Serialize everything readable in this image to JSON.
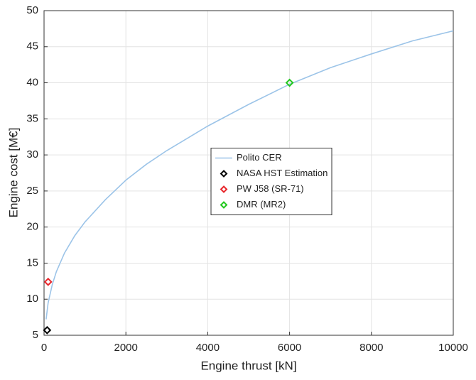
{
  "chart_data": {
    "type": "line",
    "xlabel": "Engine thrust [kN]",
    "ylabel": "Engine cost [M€]",
    "xlim": [
      0,
      10000
    ],
    "xticks": [
      0,
      2000,
      4000,
      6000,
      8000,
      10000
    ],
    "ylim": [
      5,
      50
    ],
    "yticks": [
      5,
      10,
      15,
      20,
      25,
      30,
      35,
      40,
      45,
      50
    ],
    "grid": true,
    "legend": "center",
    "series": [
      {
        "name": "Polito CER",
        "color": "#9cc4e8",
        "style": "line",
        "x": [
          50,
          100,
          200,
          300,
          500,
          750,
          1000,
          1500,
          2000,
          2500,
          3000,
          4000,
          5000,
          6000,
          7000,
          8000,
          9000,
          10000
        ],
        "values": [
          7.2,
          9.5,
          12.0,
          13.8,
          16.4,
          18.8,
          20.7,
          23.8,
          26.5,
          28.7,
          30.6,
          34.0,
          37.0,
          39.8,
          42.1,
          44.0,
          45.8,
          47.2
        ]
      },
      {
        "name": "NASA HST Estimation",
        "color": "#000000",
        "style": "marker",
        "x": [
          75
        ],
        "values": [
          5.7
        ]
      },
      {
        "name": "PW J58 (SR-71)",
        "color": "#e8262b",
        "style": "marker",
        "x": [
          100
        ],
        "values": [
          12.4
        ]
      },
      {
        "name": "DMR (MR2)",
        "color": "#22c81e",
        "style": "marker",
        "x": [
          6000
        ],
        "values": [
          40
        ]
      }
    ]
  }
}
